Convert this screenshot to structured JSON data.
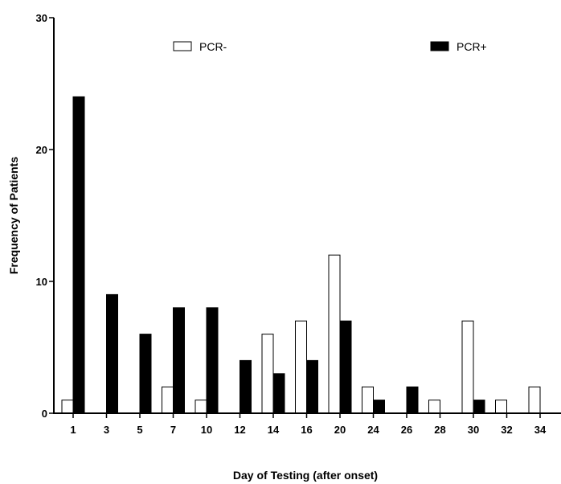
{
  "chart_data": {
    "type": "bar",
    "categories": [
      "1",
      "3",
      "5",
      "7",
      "10",
      "12",
      "14",
      "16",
      "20",
      "24",
      "26",
      "28",
      "30",
      "32",
      "34"
    ],
    "series": [
      {
        "name": "PCR-",
        "color": "#ffffff",
        "values": [
          1,
          0,
          0,
          2,
          1,
          0,
          6,
          7,
          12,
          2,
          0,
          1,
          7,
          1,
          2
        ]
      },
      {
        "name": "PCR+",
        "color": "#000000",
        "values": [
          24,
          9,
          6,
          8,
          8,
          4,
          3,
          4,
          7,
          1,
          2,
          0,
          1,
          0,
          0
        ]
      }
    ],
    "ylim": [
      0,
      30
    ],
    "yticks": [
      0,
      10,
      20,
      30
    ],
    "xlabel": "Day of Testing (after onset)",
    "ylabel": "Frequency of Patients",
    "legend_position": "top"
  }
}
